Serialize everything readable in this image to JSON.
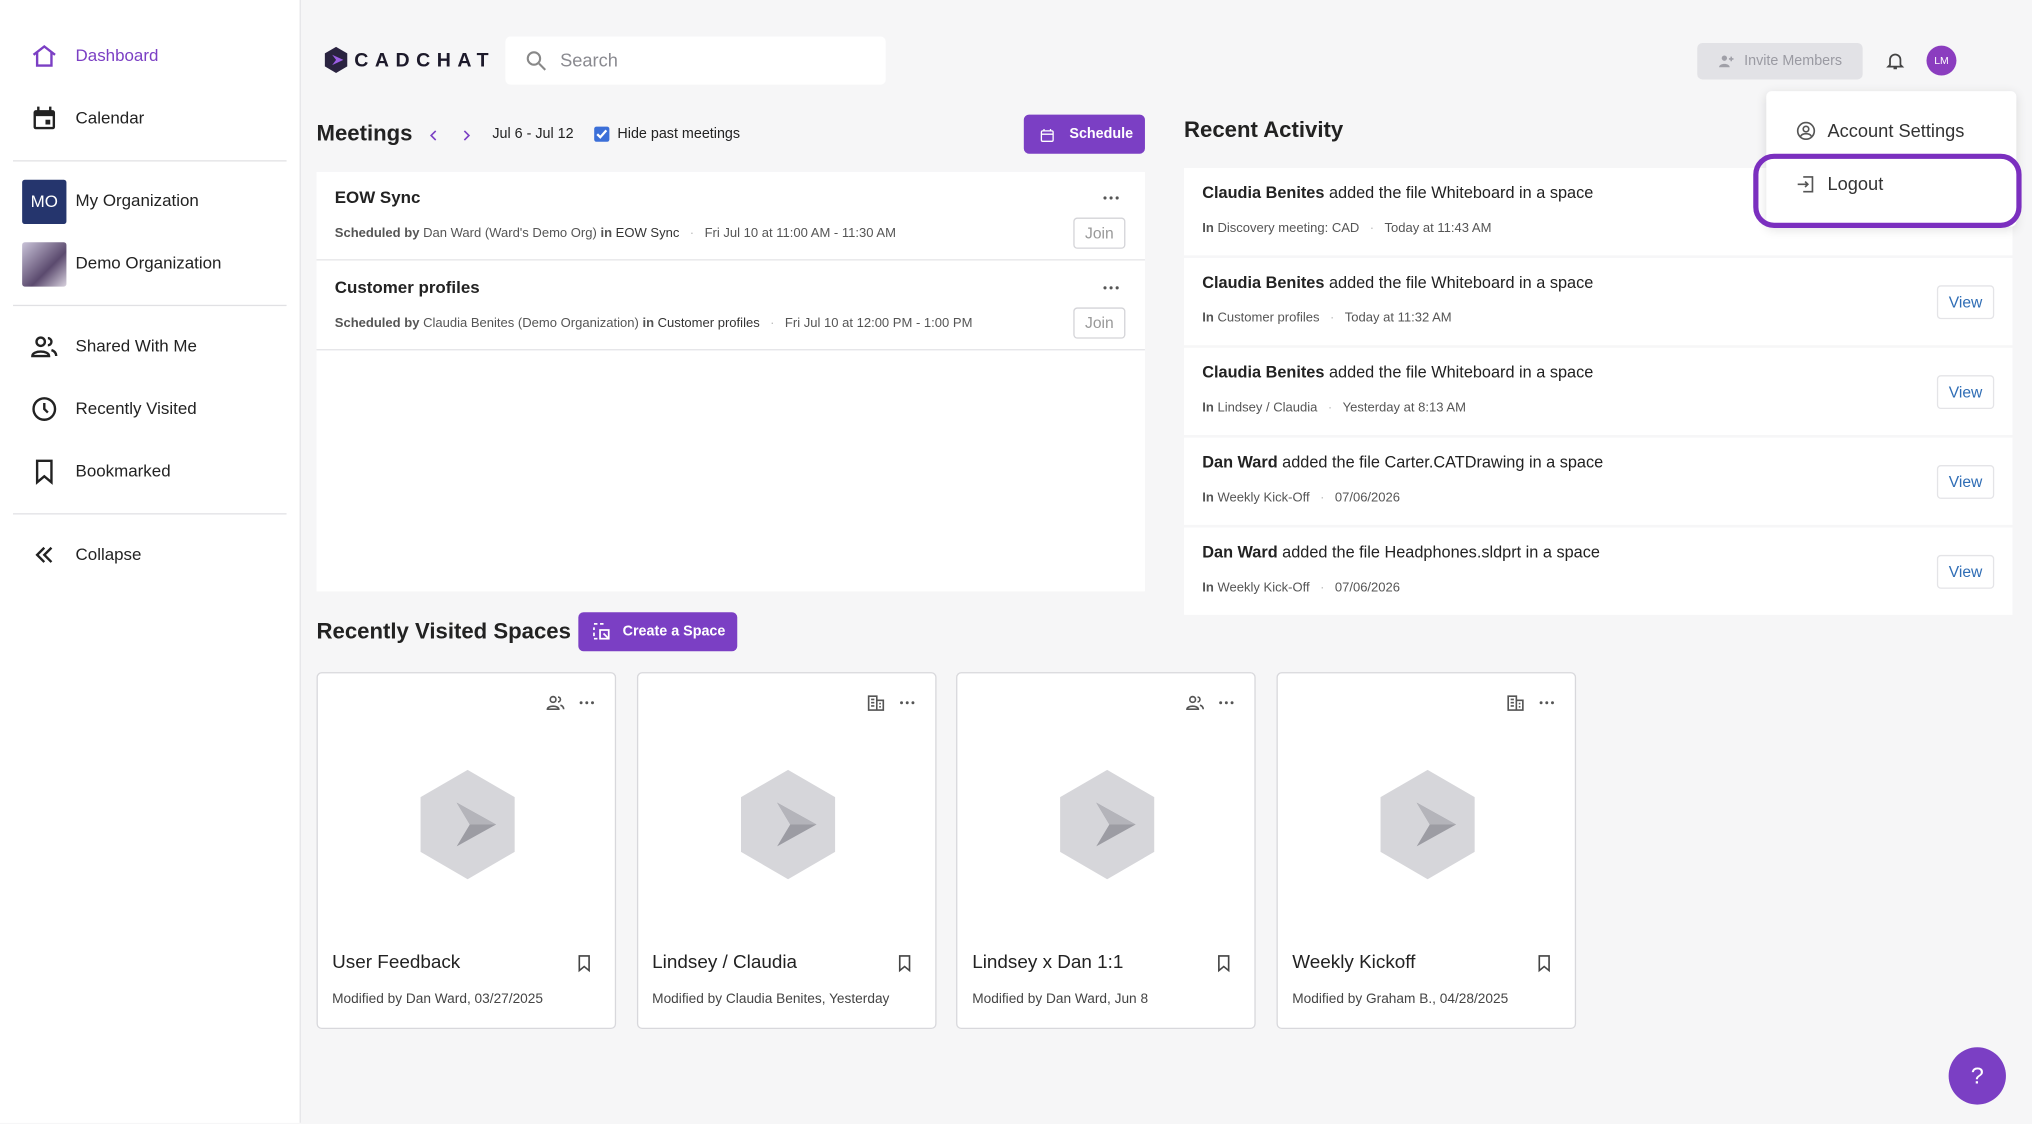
{
  "sidebar": {
    "nav": [
      "Dashboard",
      "Calendar"
    ],
    "orgs": [
      {
        "initials": "MO",
        "name": "My Organization"
      },
      {
        "name": "Demo Organization"
      }
    ],
    "links": [
      "Shared With Me",
      "Recently Visited",
      "Bookmarked"
    ],
    "collapse": "Collapse"
  },
  "header": {
    "logo": "CADCHAT",
    "search": "Search",
    "invite": "Invite Members",
    "avatar": "LM"
  },
  "meetings": {
    "title": "Meetings",
    "range": "Jul 6 - Jul 12",
    "hide_past": "Hide past meetings",
    "schedule": "Schedule",
    "items": [
      {
        "title": "EOW Sync",
        "scheduled_by": "Scheduled by",
        "organizer": "Dan Ward (Ward's Demo Org)",
        "in_label": "in",
        "space": "EOW Sync",
        "time": "Fri Jul 10 at 11:00 AM - 11:30 AM",
        "join": "Join"
      },
      {
        "title": "Customer profiles",
        "scheduled_by": "Scheduled by",
        "organizer": "Claudia Benites (Demo Organization)",
        "in_label": "in",
        "space": "Customer profiles",
        "time": "Fri Jul 10 at 12:00 PM - 1:00 PM",
        "join": "Join"
      }
    ]
  },
  "activity": {
    "title": "Recent Activity",
    "items": [
      {
        "user": "Claudia Benites",
        "action": "added the file Whiteboard in a space",
        "in_label": "In",
        "space": "Discovery meeting: CAD",
        "time": "Today at 11:43 AM"
      },
      {
        "user": "Claudia Benites",
        "action": "added the file Whiteboard in a space",
        "in_label": "In",
        "space": "Customer profiles",
        "time": "Today at 11:32 AM",
        "view": "View"
      },
      {
        "user": "Claudia Benites",
        "action": "added the file Whiteboard in a space",
        "in_label": "In",
        "space": "Lindsey / Claudia",
        "time": "Yesterday at 8:13 AM",
        "view": "View"
      },
      {
        "user": "Dan Ward",
        "action": "added the file Carter.CATDrawing in a space",
        "in_label": "In",
        "space": "Weekly Kick-Off",
        "time": "07/06/2026",
        "view": "View"
      },
      {
        "user": "Dan Ward",
        "action": "added the file Headphones.sldprt in a space",
        "in_label": "In",
        "space": "Weekly Kick-Off",
        "time": "07/06/2026",
        "view": "View"
      }
    ]
  },
  "account_menu": {
    "items": [
      "Account Settings",
      "Logout"
    ]
  },
  "spaces": {
    "title": "Recently Visited Spaces",
    "create": "Create a Space",
    "cards": [
      {
        "name": "User Feedback",
        "modified": "Modified by Dan Ward, 03/27/2025"
      },
      {
        "name": "Lindsey / Claudia",
        "modified": "Modified by Claudia Benites, Yesterday"
      },
      {
        "name": "Lindsey x Dan 1:1",
        "modified": "Modified by Dan Ward, Jun 8"
      },
      {
        "name": "Weekly Kickoff",
        "modified": "Modified by Graham B., 04/28/2025"
      }
    ]
  },
  "help": "?"
}
